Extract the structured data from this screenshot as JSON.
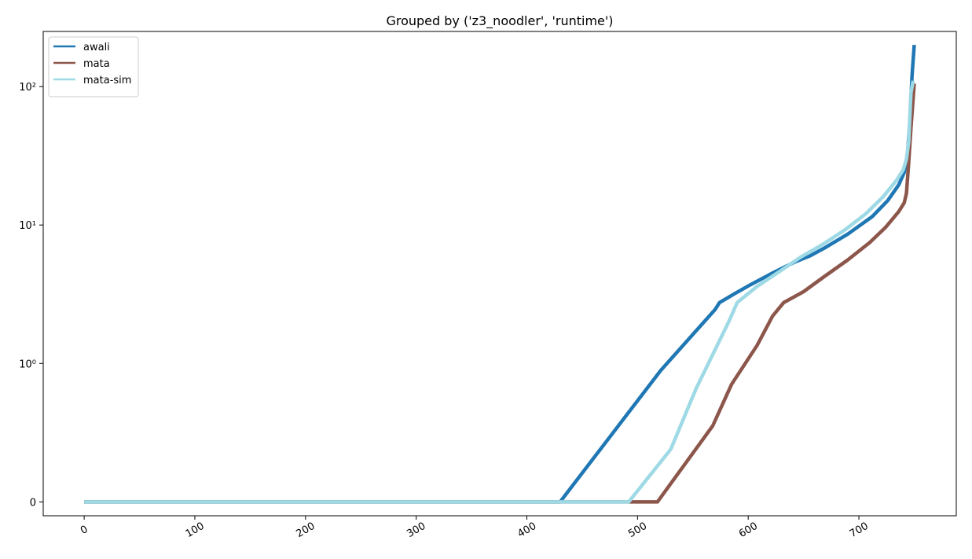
{
  "chart_data": {
    "type": "line",
    "title": "Grouped by ('z3_noodler', 'runtime')",
    "xlabel": "",
    "ylabel": "",
    "x_ticks": [
      0,
      100,
      200,
      300,
      400,
      500,
      600,
      700
    ],
    "y_ticks": [
      {
        "value": 0,
        "label": "0"
      },
      {
        "value": 1,
        "label": "10⁰"
      },
      {
        "value": 10,
        "label": "10¹"
      },
      {
        "value": 100,
        "label": "10²"
      }
    ],
    "xlim": [
      -37,
      788
    ],
    "yscale": "symlog",
    "ylim": [
      -0.1,
      250
    ],
    "grid": false,
    "legend_position": "upper left",
    "series": [
      {
        "name": "awali",
        "color": "#1f77b4",
        "points": [
          [
            0,
            0
          ],
          [
            430,
            0
          ],
          [
            521,
            0.95
          ],
          [
            570,
            2.45
          ],
          [
            574,
            2.75
          ],
          [
            588,
            3.2
          ],
          [
            602,
            3.7
          ],
          [
            622,
            4.5
          ],
          [
            642,
            5.4
          ],
          [
            656,
            6.0
          ],
          [
            670,
            6.9
          ],
          [
            690,
            8.6
          ],
          [
            712,
            11.5
          ],
          [
            726,
            15.0
          ],
          [
            736,
            19.5
          ],
          [
            741,
            24.0
          ],
          [
            744,
            33.0
          ],
          [
            746,
            55.0
          ],
          [
            748,
            120.0
          ],
          [
            750,
            200.0
          ]
        ]
      },
      {
        "name": "mata",
        "color": "#8c564b",
        "points": [
          [
            0,
            0
          ],
          [
            518,
            0
          ],
          [
            568,
            0.55
          ],
          [
            585,
            0.85
          ],
          [
            608,
            1.35
          ],
          [
            622,
            2.2
          ],
          [
            632,
            2.75
          ],
          [
            650,
            3.3
          ],
          [
            668,
            4.2
          ],
          [
            690,
            5.6
          ],
          [
            710,
            7.5
          ],
          [
            724,
            9.6
          ],
          [
            736,
            12.5
          ],
          [
            741,
            14.5
          ],
          [
            743,
            17.0
          ],
          [
            745,
            28.0
          ],
          [
            747,
            50.0
          ],
          [
            750,
            105.0
          ]
        ]
      },
      {
        "name": "mata-sim",
        "color": "#9edae5",
        "points": [
          [
            0,
            0
          ],
          [
            492,
            0
          ],
          [
            530,
            0.38
          ],
          [
            553,
            0.82
          ],
          [
            583,
            2.05
          ],
          [
            590,
            2.75
          ],
          [
            608,
            3.6
          ],
          [
            628,
            4.6
          ],
          [
            648,
            5.9
          ],
          [
            668,
            7.3
          ],
          [
            688,
            9.3
          ],
          [
            706,
            12.0
          ],
          [
            722,
            16.0
          ],
          [
            734,
            21.0
          ],
          [
            740,
            25.0
          ],
          [
            743,
            30.0
          ],
          [
            745,
            40.0
          ],
          [
            747,
            90.0
          ],
          [
            749,
            110.0
          ]
        ]
      }
    ]
  }
}
